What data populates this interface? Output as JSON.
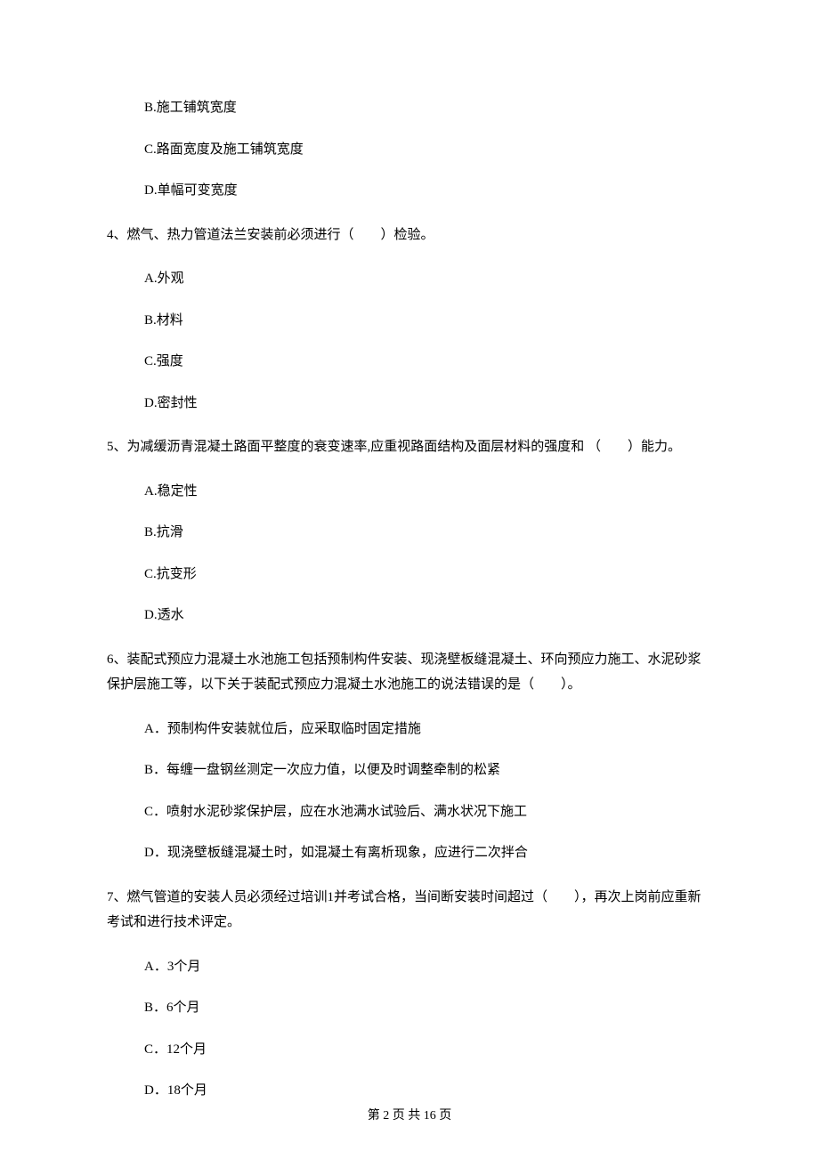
{
  "options_pre": [
    "B.施工铺筑宽度",
    "C.路面宽度及施工铺筑宽度",
    "D.单幅可变宽度"
  ],
  "q4": {
    "text": "4、燃气、热力管道法兰安装前必须进行（　　）检验。",
    "options": [
      "A.外观",
      "B.材料",
      "C.强度",
      "D.密封性"
    ]
  },
  "q5": {
    "text": "5、为减缓沥青混凝土路面平整度的衰变速率,应重视路面结构及面层材料的强度和 （　　）能力。",
    "options": [
      "A.稳定性",
      "B.抗滑",
      "C.抗变形",
      "D.透水"
    ]
  },
  "q6": {
    "text": "6、装配式预应力混凝土水池施工包括预制构件安装、现浇壁板缝混凝土、环向预应力施工、水泥砂浆保护层施工等，以下关于装配式预应力混凝土水池施工的说法错误的是（　　）。",
    "options": [
      "A．预制构件安装就位后，应采取临时固定措施",
      "B．每缠一盘钢丝测定一次应力值，以便及时调整牵制的松紧",
      "C．喷射水泥砂浆保护层，应在水池满水试验后、满水状况下施工",
      "D．现浇壁板缝混凝土时，如混凝土有离析现象，应进行二次拌合"
    ]
  },
  "q7": {
    "text": "7、燃气管道的安装人员必须经过培训1并考试合格，当间断安装时间超过（　　），再次上岗前应重新考试和进行技术评定。",
    "options": [
      "A．3个月",
      "B．6个月",
      "C．12个月",
      "D．18个月"
    ]
  },
  "footer": "第 2 页 共 16 页"
}
